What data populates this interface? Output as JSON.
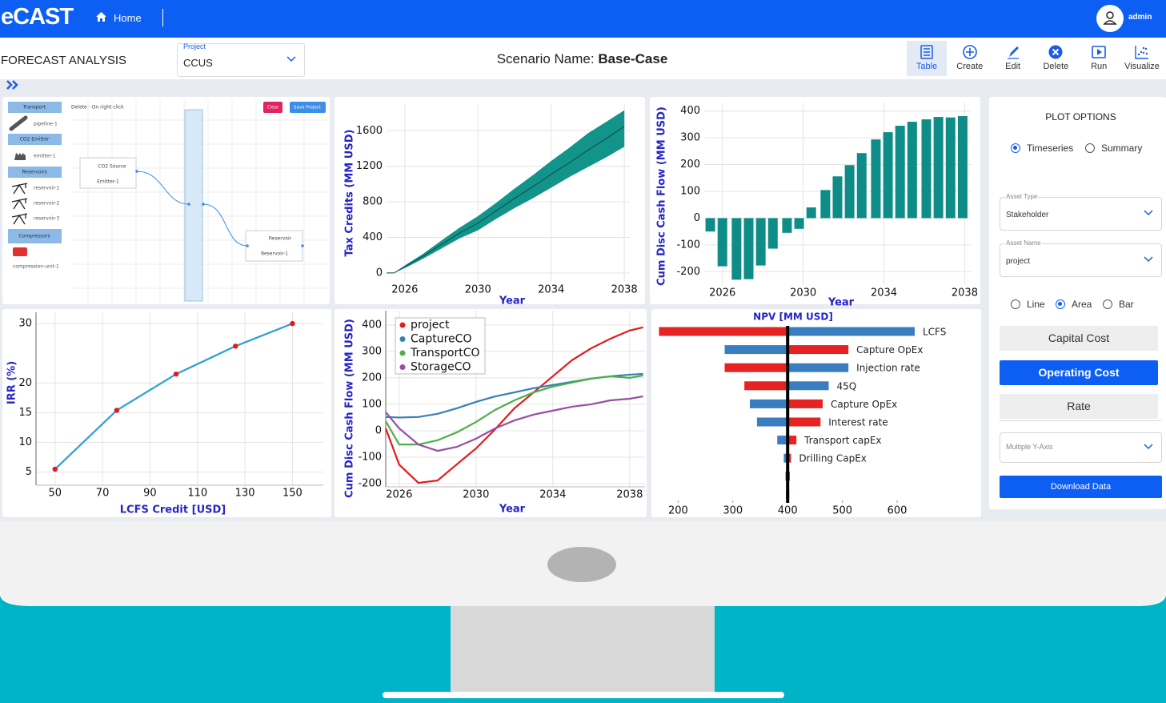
{
  "header": {
    "brand": "eCAST",
    "nav": "Home",
    "user": "admin"
  },
  "toolbar": {
    "page_title": "FORECAST ANALYSIS",
    "project_label": "Project",
    "project_value": "CCUS",
    "scenario_label": "Scenario Name:",
    "scenario_value": "Base-Case",
    "actions": [
      "Table",
      "Create",
      "Edit",
      "Delete",
      "Run",
      "Visualize"
    ],
    "action_selected": 0
  },
  "diagram": {
    "hint": "Delete - On right click",
    "buttons": [
      "Clear",
      "Save Project"
    ],
    "palette": [
      {
        "group": "Transport",
        "items": [
          "pipeline-1"
        ]
      },
      {
        "group": "CO2 Emitter",
        "items": [
          "emitter-1"
        ]
      },
      {
        "group": "Reservoirs",
        "items": [
          "reservoir-1",
          "reservoir-2",
          "reservoir-3"
        ]
      },
      {
        "group": "Compressors",
        "items": [
          "compression-unit-1"
        ]
      }
    ],
    "nodes": [
      {
        "title": "CO2 Source",
        "label": "Emitter-1"
      },
      {
        "title": "Reservoir",
        "label": "Reservoir-1"
      }
    ]
  },
  "chart_data": [
    {
      "type": "area",
      "y_label": "Tax Credits (MM USD)",
      "x_label": "Year",
      "x": [
        2025,
        2025.4,
        2026,
        2027,
        2028,
        2029,
        2030,
        2031,
        2032,
        2033,
        2034,
        2035,
        2036,
        2037,
        2038
      ],
      "values": [
        0,
        0,
        70,
        190,
        320,
        450,
        560,
        700,
        840,
        970,
        1110,
        1240,
        1380,
        1510,
        1650
      ],
      "lower": [
        0,
        0,
        55,
        160,
        275,
        390,
        480,
        610,
        730,
        840,
        960,
        1080,
        1190,
        1300,
        1420
      ],
      "upper": [
        0,
        0,
        85,
        215,
        365,
        510,
        640,
        790,
        950,
        1100,
        1260,
        1410,
        1570,
        1700,
        1830
      ],
      "color": "#12948a",
      "line_color": "#0b4a45",
      "xlim": [
        2025,
        2038.3
      ],
      "ylim": [
        -100,
        1900
      ],
      "xticks": [
        2026,
        2030,
        2034,
        2038
      ],
      "yticks": [
        0,
        400,
        800,
        1200,
        1600
      ],
      "grid": true
    },
    {
      "type": "bar",
      "y_label": "Cum Disc Cash Flow (MM USD)",
      "x_label": "Year",
      "x": [
        2025.4,
        2026.0,
        2026.7,
        2027.3,
        2027.9,
        2028.5,
        2029.2,
        2029.8,
        2030.4,
        2031.1,
        2031.7,
        2032.3,
        2032.9,
        2033.6,
        2034.2,
        2034.8,
        2035.4,
        2036.1,
        2036.7,
        2037.3,
        2037.9
      ],
      "values": [
        -50,
        -180,
        -230,
        -228,
        -177,
        -114,
        -55,
        -40,
        40,
        105,
        156,
        198,
        243,
        294,
        321,
        345,
        360,
        369,
        378,
        376,
        381
      ],
      "color": "#0e8c87",
      "xlim": [
        2025.1,
        2038.3
      ],
      "ylim": [
        -250,
        432
      ],
      "xticks": [
        2026,
        2030,
        2034,
        2038
      ],
      "yticks": [
        -200,
        -100,
        0,
        100,
        200,
        300,
        400
      ],
      "grid": true
    },
    {
      "type": "line",
      "y_label": "IRR (%)",
      "x_label": "LCFS Credit [USD]",
      "x": [
        50,
        76,
        101,
        126,
        150
      ],
      "values": [
        5.5,
        15.4,
        21.5,
        26.2,
        30
      ],
      "color": "#2aa0d4",
      "marker_color": "#e31a1c",
      "xlim": [
        42,
        163
      ],
      "ylim": [
        2.8,
        31.9
      ],
      "xticks": [
        50,
        70,
        90,
        110,
        130,
        150
      ],
      "yticks": [
        5,
        10,
        15,
        20,
        30
      ],
      "grid": true
    },
    {
      "type": "line",
      "y_label": "Cum Disc Cash Flow (MM USD)",
      "x_label": "Year",
      "x": [
        2025.3,
        2026,
        2027,
        2028,
        2029,
        2030,
        2031,
        2032,
        2033,
        2034,
        2035,
        2036,
        2037,
        2038,
        2038.7
      ],
      "series": [
        {
          "name": "project",
          "color": "#e41a1c",
          "values": [
            9,
            -128,
            -197,
            -188,
            -127,
            -67,
            6,
            85,
            145,
            206,
            267,
            312,
            348,
            379,
            391
          ]
        },
        {
          "name": "CaptureCO",
          "color": "#377eb8",
          "values": [
            52,
            50,
            52,
            64,
            85,
            109,
            130,
            145,
            161,
            173,
            185,
            197,
            206,
            212,
            215
          ]
        },
        {
          "name": "TransportCO",
          "color": "#4daf4a",
          "values": [
            36,
            -52,
            -52,
            -36,
            -6,
            33,
            79,
            115,
            145,
            167,
            182,
            197,
            206,
            200,
            209
          ]
        },
        {
          "name": "StorageCO",
          "color": "#984ea3",
          "values": [
            70,
            9,
            -52,
            -76,
            -61,
            -30,
            9,
            39,
            61,
            76,
            91,
            100,
            115,
            121,
            130
          ]
        }
      ],
      "legend": "upper left",
      "xlim": [
        2025.3,
        2038.8
      ],
      "ylim": [
        -212,
        454
      ],
      "xticks": [
        2026,
        2030,
        2034,
        2038
      ],
      "yticks": [
        -200,
        -100,
        0,
        100,
        200,
        300,
        400
      ],
      "grid": true
    },
    {
      "type": "tornado",
      "title": "NPV [MM USD]",
      "base": 400,
      "categories": [
        "LCFS",
        "Capture OpEx",
        "Injection rate",
        "45Q",
        "Capture OpEx",
        "Interest rate",
        "Transport capEx",
        "Drilling CapEx",
        null,
        null
      ],
      "series": [
        {
          "color": "#e62222",
          "values": [
            165,
            511,
            285,
            321,
            464,
            460,
            416,
            406,
            404,
            403
          ]
        },
        {
          "color": "#3a7dc1",
          "values": [
            632,
            285,
            511,
            475,
            331,
            344,
            381,
            393,
            396,
            397
          ]
        }
      ],
      "xlim": [
        160,
        635
      ],
      "xticks": [
        200,
        300,
        400,
        500,
        600
      ],
      "grid": false
    }
  ],
  "plot_options": {
    "title": "PLOT OPTIONS",
    "views": [
      "Timeseries",
      "Summary"
    ],
    "view_selected": 0,
    "asset_type_label": "Asset Type",
    "asset_type": "Stakeholder",
    "asset_name_label": "Asset Name",
    "asset_name": "project",
    "plot_types": [
      "Line",
      "Area",
      "Bar"
    ],
    "plot_type_selected": 1,
    "metrics": [
      "Capital Cost",
      "Operating Cost",
      "Rate"
    ],
    "metric_selected": 1,
    "y_axis_mode": "Multiple Y-Axis",
    "download": "Download Data"
  }
}
